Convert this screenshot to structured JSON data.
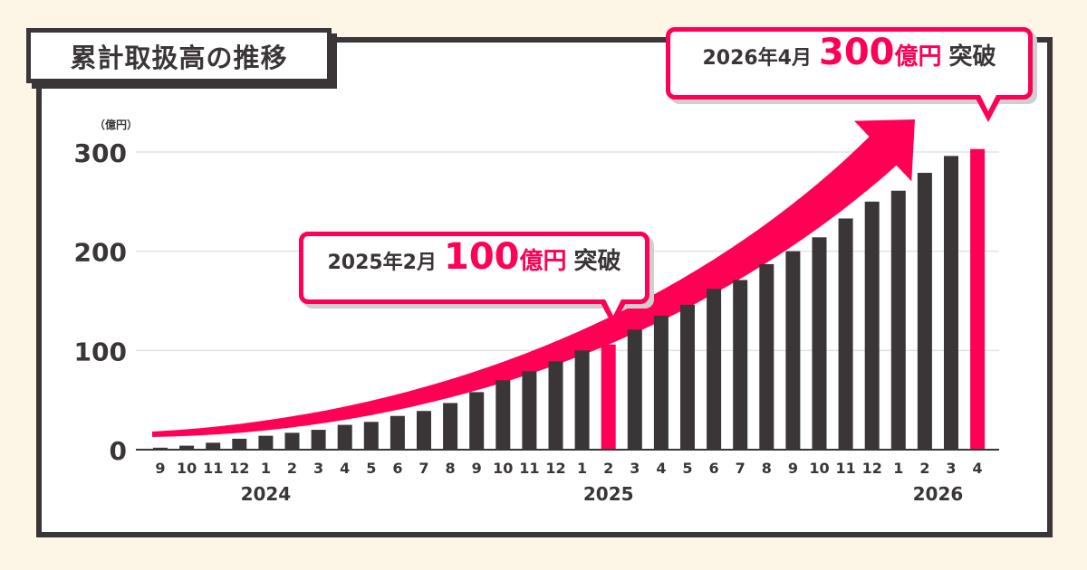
{
  "title": "累計取扱高の推移",
  "y_unit": "（億円）",
  "callouts": {
    "first": {
      "date": "2025年2月",
      "amount": "100",
      "unit": "億円",
      "suffix": "突破"
    },
    "second": {
      "date": "2026年4月",
      "amount": "300",
      "unit": "億円",
      "suffix": "突破"
    }
  },
  "colors": {
    "bar": "#3a3536",
    "highlight": "#ff0055",
    "frame": "#3a3536",
    "background": "#fdf6e6"
  },
  "chart_data": {
    "type": "bar",
    "title": "累計取扱高の推移",
    "ylabel": "（億円）",
    "ylim": [
      0,
      300
    ],
    "yticks": [
      0,
      100,
      200,
      300
    ],
    "grid": true,
    "categories": [
      "9",
      "10",
      "11",
      "12",
      "1",
      "2",
      "3",
      "4",
      "5",
      "6",
      "7",
      "8",
      "9",
      "10",
      "11",
      "12",
      "1",
      "2",
      "3",
      "4",
      "5",
      "6",
      "7",
      "8",
      "9",
      "10",
      "11",
      "12",
      "1",
      "2",
      "3",
      "4"
    ],
    "year_labels": [
      {
        "label": "2024",
        "center_index": 4
      },
      {
        "label": "2025",
        "center_index": 17
      },
      {
        "label": "2026",
        "center_index": 29.5
      }
    ],
    "values": [
      2,
      4,
      7,
      11,
      14,
      17,
      20,
      25,
      28,
      34,
      39,
      47,
      58,
      70,
      79,
      89,
      100,
      106,
      121,
      135,
      146,
      162,
      171,
      187,
      200,
      214,
      233,
      250,
      261,
      279,
      296,
      303
    ],
    "highlight_indices": [
      17,
      31
    ],
    "trend_arrow": true
  }
}
